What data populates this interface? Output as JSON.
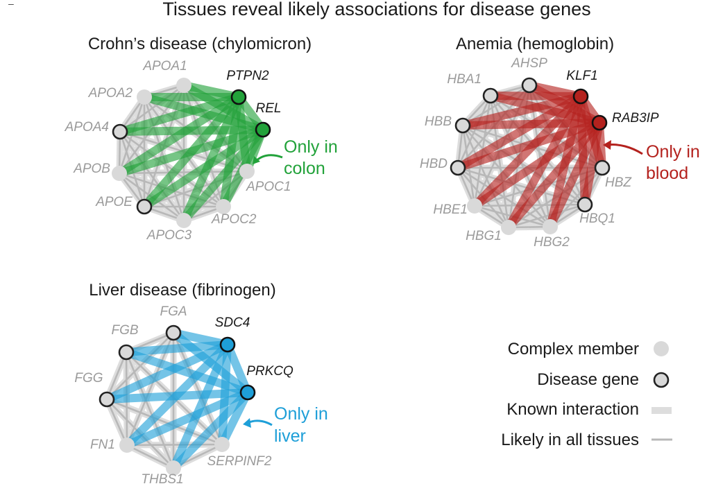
{
  "title": "Tissues reveal likely associations for disease genes",
  "corner_mark": "–",
  "colors": {
    "member_fill": "#d9d9d9",
    "known_edge": "#dddddd",
    "likely_edge": "#b8b8b8",
    "disease_stroke": "#222222",
    "green": "#22a23a",
    "red": "#b4221e",
    "blue": "#1e9fd8"
  },
  "panels": [
    {
      "id": "crohn",
      "title": "Crohn’s disease (chylomicron)",
      "accent": "#22a23a",
      "note_lines": [
        "Only in",
        "colon"
      ],
      "nodes": [
        {
          "label": "APOA1",
          "kind": "member"
        },
        {
          "label": "PTPN2",
          "kind": "highlight"
        },
        {
          "label": "REL",
          "kind": "highlight"
        },
        {
          "label": "APOC1",
          "kind": "member"
        },
        {
          "label": "APOC2",
          "kind": "member"
        },
        {
          "label": "APOC3",
          "kind": "member"
        },
        {
          "label": "APOE",
          "kind": "disease"
        },
        {
          "label": "APOB",
          "kind": "member"
        },
        {
          "label": "APOA4",
          "kind": "disease"
        },
        {
          "label": "APOA2",
          "kind": "member"
        }
      ]
    },
    {
      "id": "anemia",
      "title": "Anemia (hemoglobin)",
      "accent": "#b4221e",
      "note_lines": [
        "Only in",
        "blood"
      ],
      "nodes": [
        {
          "label": "AHSP",
          "kind": "disease"
        },
        {
          "label": "KLF1",
          "kind": "highlight"
        },
        {
          "label": "RAB3IP",
          "kind": "highlight"
        },
        {
          "label": "HBZ",
          "kind": "disease"
        },
        {
          "label": "HBQ1",
          "kind": "disease"
        },
        {
          "label": "HBG2",
          "kind": "member"
        },
        {
          "label": "HBG1",
          "kind": "member"
        },
        {
          "label": "HBE1",
          "kind": "member"
        },
        {
          "label": "HBD",
          "kind": "disease"
        },
        {
          "label": "HBB",
          "kind": "disease"
        },
        {
          "label": "HBA1",
          "kind": "disease"
        }
      ]
    },
    {
      "id": "liver",
      "title": "Liver disease (fibrinogen)",
      "accent": "#1e9fd8",
      "note_lines": [
        "Only in",
        "liver"
      ],
      "nodes": [
        {
          "label": "FGA",
          "kind": "disease"
        },
        {
          "label": "SDC4",
          "kind": "highlight"
        },
        {
          "label": "PRKCQ",
          "kind": "highlight"
        },
        {
          "label": "SERPINF2",
          "kind": "member"
        },
        {
          "label": "THBS1",
          "kind": "member"
        },
        {
          "label": "FN1",
          "kind": "member"
        },
        {
          "label": "FGG",
          "kind": "disease"
        },
        {
          "label": "FGB",
          "kind": "disease"
        }
      ]
    }
  ],
  "legend": {
    "complex_member": "Complex member",
    "disease_gene": "Disease gene",
    "known_interaction": "Known interaction",
    "likely_all": "Likely in all tissues"
  }
}
